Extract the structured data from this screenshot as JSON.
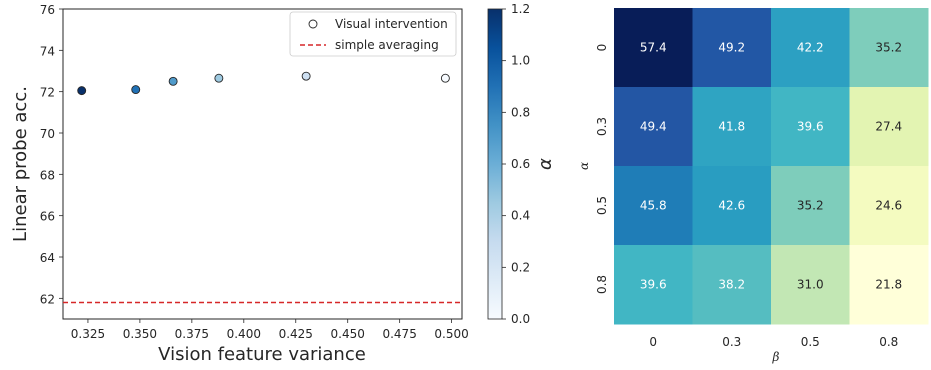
{
  "chart_data": [
    {
      "type": "scatter",
      "xlabel": "Vision feature variance",
      "ylabel": "Linear probe acc.",
      "xlim": [
        0.313,
        0.505
      ],
      "ylim": [
        61,
        76
      ],
      "x_ticks": [
        "0.325",
        "0.350",
        "0.375",
        "0.400",
        "0.425",
        "0.450",
        "0.475",
        "0.500"
      ],
      "y_ticks": [
        "62",
        "64",
        "66",
        "68",
        "70",
        "72",
        "74",
        "76"
      ],
      "series": [
        {
          "name": "Visual intervention",
          "points": [
            {
              "x": 0.322,
              "y": 72.05,
              "alpha": 1.2
            },
            {
              "x": 0.348,
              "y": 72.1,
              "alpha": 0.9
            },
            {
              "x": 0.366,
              "y": 72.5,
              "alpha": 0.7
            },
            {
              "x": 0.388,
              "y": 72.65,
              "alpha": 0.45
            },
            {
              "x": 0.43,
              "y": 72.75,
              "alpha": 0.25
            },
            {
              "x": 0.497,
              "y": 72.65,
              "alpha": 0.0
            }
          ]
        }
      ],
      "reference_line": {
        "name": "simple averaging",
        "y": 61.8,
        "color": "#d62728",
        "style": "dashed"
      },
      "legend_placement": "top-right",
      "grid": false,
      "colorbar": {
        "label": "α",
        "range": [
          0.0,
          1.2
        ],
        "ticks": [
          "0.0",
          "0.2",
          "0.4",
          "0.6",
          "0.8",
          "1.0",
          "1.2"
        ],
        "colormap": "Blues"
      }
    },
    {
      "type": "heatmap",
      "xlabel": "β",
      "ylabel": "α",
      "x_categories": [
        "0",
        "0.3",
        "0.5",
        "0.8"
      ],
      "y_categories": [
        "0",
        "0.3",
        "0.5",
        "0.8"
      ],
      "values": [
        [
          57.4,
          49.2,
          42.2,
          35.2
        ],
        [
          49.4,
          41.8,
          39.6,
          27.4
        ],
        [
          45.8,
          42.6,
          35.2,
          24.6
        ],
        [
          39.6,
          38.2,
          31.0,
          21.8
        ]
      ],
      "value_labels": [
        [
          "57.4",
          "49.2",
          "42.2",
          "35.2"
        ],
        [
          "49.4",
          "41.8",
          "39.6",
          "27.4"
        ],
        [
          "45.8",
          "42.6",
          "35.2",
          "24.6"
        ],
        [
          "39.6",
          "38.2",
          "31.0",
          "21.8"
        ]
      ],
      "colormap": "YlGnBu",
      "grid": false
    }
  ]
}
